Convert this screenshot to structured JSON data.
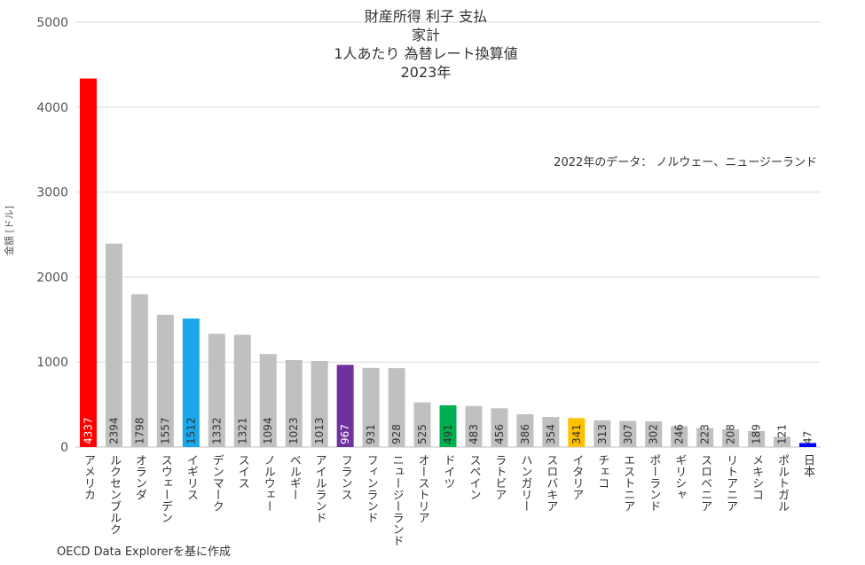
{
  "chart_data": {
    "type": "bar",
    "title_lines": [
      "財産所得 利子 支払",
      "家計",
      "1人あたり 為替レート換算値",
      "2023年"
    ],
    "note": "2022年のデータ： ノルウェー、ニュージーランド",
    "source": "OECD Data Explorerを基に作成",
    "ylabel": "金額 [ドル]",
    "xlabel": "",
    "ylim": [
      0,
      5000
    ],
    "yticks": [
      0,
      1000,
      2000,
      3000,
      4000,
      5000
    ],
    "grid": true,
    "categories": [
      "アメリカ",
      "ルクセンブルク",
      "オランダ",
      "スウェーデン",
      "イギリス",
      "デンマーク",
      "スイス",
      "ノルウェー",
      "ベルギー",
      "アイルランド",
      "フランス",
      "フィンランド",
      "ニュージーランド",
      "オーストリア",
      "ドイツ",
      "スペイン",
      "ラトビア",
      "ハンガリー",
      "スロバキア",
      "イタリア",
      "チェコ",
      "エストニア",
      "ポーランド",
      "ギリシャ",
      "スロベニア",
      "リトアニア",
      "メキシコ",
      "ポルトガル",
      "日本"
    ],
    "values": [
      4337,
      2394,
      1798,
      1557,
      1512,
      1332,
      1321,
      1094,
      1023,
      1013,
      967,
      931,
      928,
      525,
      491,
      483,
      456,
      386,
      354,
      341,
      313,
      307,
      302,
      246,
      223,
      208,
      189,
      121,
      47
    ],
    "value_labels": [
      "4337",
      "2394",
      "1798",
      "1557",
      "1512",
      "1332",
      "1321",
      "1094",
      "1023",
      "1013",
      "967",
      "931",
      "928",
      "525",
      "491",
      "483",
      "456",
      "386",
      "354",
      "341",
      "313",
      "307",
      "302",
      "246",
      "223",
      "208",
      "189",
      "121",
      "47"
    ],
    "colors": [
      "#ff0000",
      "#c0c0c0",
      "#c0c0c0",
      "#c0c0c0",
      "#1aa7ec",
      "#c0c0c0",
      "#c0c0c0",
      "#c0c0c0",
      "#c0c0c0",
      "#c0c0c0",
      "#7030a0",
      "#c0c0c0",
      "#c0c0c0",
      "#c0c0c0",
      "#00b050",
      "#c0c0c0",
      "#c0c0c0",
      "#c0c0c0",
      "#c0c0c0",
      "#ffc000",
      "#c0c0c0",
      "#c0c0c0",
      "#c0c0c0",
      "#c0c0c0",
      "#c0c0c0",
      "#c0c0c0",
      "#c0c0c0",
      "#c0c0c0",
      "#0000ff"
    ],
    "label_colors": [
      "#ffffff",
      "#333333",
      "#333333",
      "#333333",
      "#333333",
      "#333333",
      "#333333",
      "#333333",
      "#333333",
      "#333333",
      "#ffffff",
      "#333333",
      "#333333",
      "#333333",
      "#333333",
      "#333333",
      "#333333",
      "#333333",
      "#333333",
      "#333333",
      "#333333",
      "#333333",
      "#333333",
      "#333333",
      "#333333",
      "#333333",
      "#333333",
      "#333333",
      "#333333"
    ]
  }
}
